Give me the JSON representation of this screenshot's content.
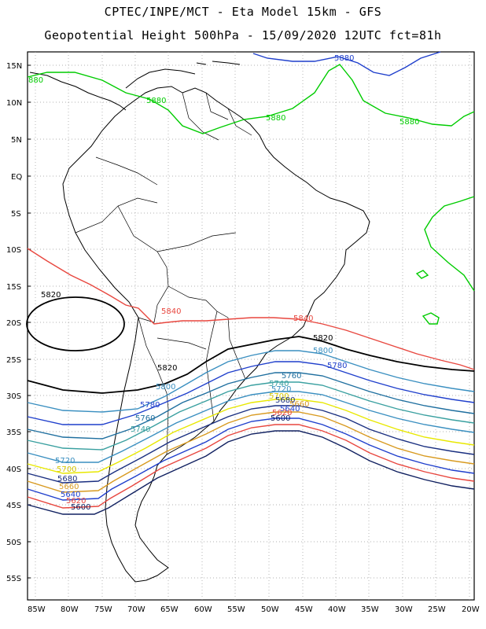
{
  "header": {
    "line1": "CPTEC/INPE/MCT -  Eta Model 15km - GFS",
    "line2": "Geopotential Height 500hPa - 15/09/2020 12UTC fct=81h"
  },
  "axes": {
    "lat_ticks": [
      "15N",
      "10N",
      "5N",
      "EQ",
      "5S",
      "10S",
      "15S",
      "20S",
      "25S",
      "30S",
      "35S",
      "40S",
      "45S",
      "50S",
      "55S"
    ],
    "lon_ticks": [
      "85W",
      "80W",
      "75W",
      "70W",
      "65W",
      "60W",
      "55W",
      "50W",
      "45W",
      "40W",
      "35W",
      "30W",
      "25W",
      "20W"
    ]
  },
  "contours": [
    {
      "value": "5880",
      "color": "#00cc00"
    },
    {
      "value": "5880",
      "color": "#1f3fcc"
    },
    {
      "value": "5840",
      "color": "#e8473f"
    },
    {
      "value": "5820",
      "color": "#000000"
    },
    {
      "value": "5800",
      "color": "#3a8fc0"
    },
    {
      "value": "5780",
      "color": "#1f3fcc"
    },
    {
      "value": "5760",
      "color": "#1f6f9f"
    },
    {
      "value": "5740",
      "color": "#3aa0a0"
    },
    {
      "value": "5720",
      "color": "#3a8fc0"
    },
    {
      "value": "5700",
      "color": "#e8e800"
    },
    {
      "value": "5680",
      "color": "#1a2f80"
    },
    {
      "value": "5660",
      "color": "#d89a20"
    },
    {
      "value": "5640",
      "color": "#1f3fcc"
    },
    {
      "value": "5620",
      "color": "#e8473f"
    },
    {
      "value": "5600",
      "color": "#102060"
    }
  ],
  "labels": {
    "l5880_top": "5880",
    "l5880_g1": "5880",
    "l5880_g2": "5880",
    "l5880_g3": "5880",
    "l5880_edge": "880",
    "l5820_high": "5820",
    "l5840_a": "5840",
    "l5840_b": "5840",
    "l5820_a": "5820",
    "l5820_b": "5820",
    "l5800_a": "5800",
    "l5800_b": "5800",
    "l5780_a": "5780",
    "l5780_b": "5780",
    "l5760_a": "5760",
    "l5760_b": "5760",
    "l5740_a": "5740",
    "l5740_b": "5740",
    "l5720_a": "5720",
    "l5720_b": "5720",
    "l5700_a": "5700",
    "l5700_b": "5700",
    "l5680_a": "5680",
    "l5680_b": "5680",
    "l5660_a": "5660",
    "l5660_b": "5660",
    "l5640_a": "5640",
    "l5640_b": "5640",
    "l5620_a": "5620",
    "l5620_b": "5620",
    "l5600_a": "5600",
    "l5600_b": "5600"
  }
}
